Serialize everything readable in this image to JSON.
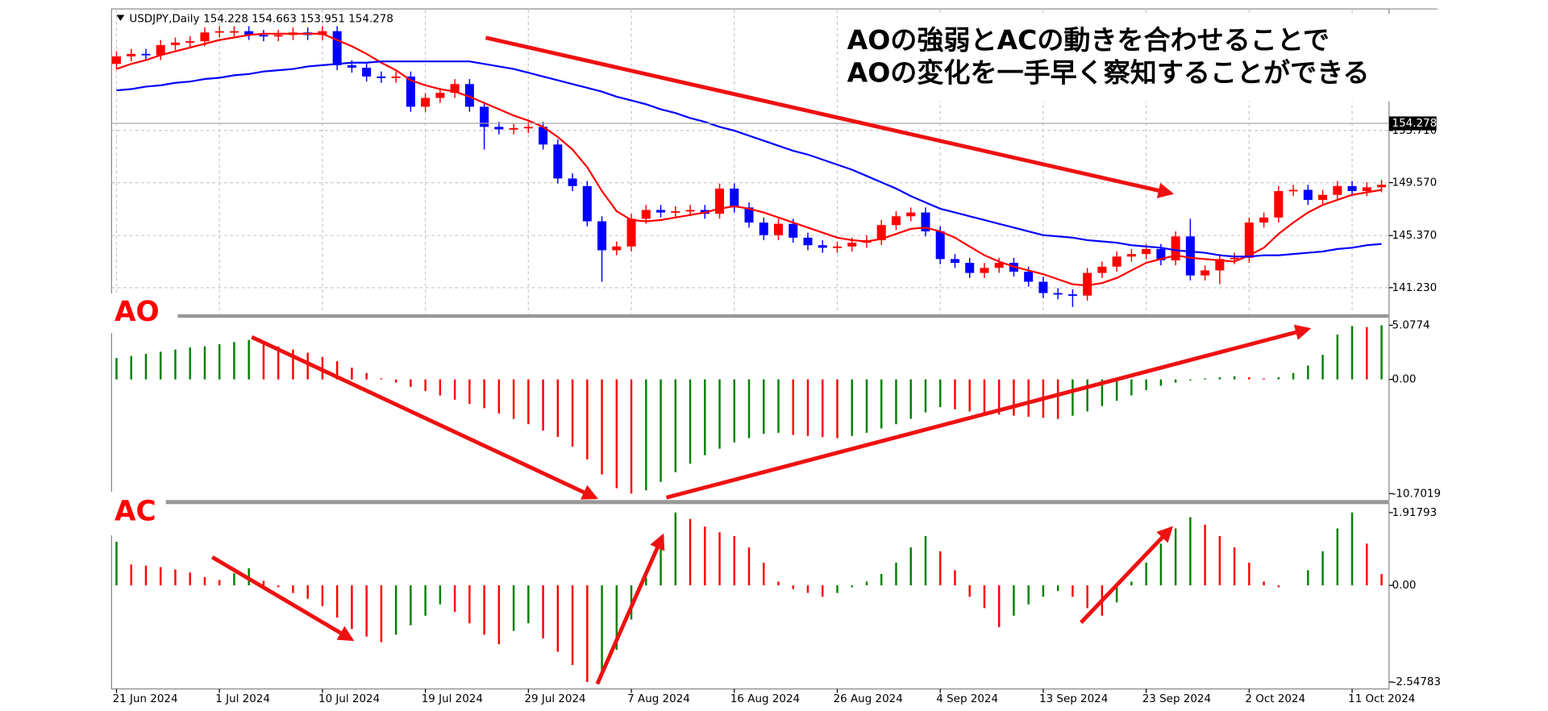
{
  "chart_data": [
    {
      "type": "candlestick",
      "title": "USDJPY,Daily",
      "header": {
        "open": 154.228,
        "high": 154.663,
        "low": 153.951,
        "close": 154.278
      },
      "last_price": 154.278,
      "annotations": [
        "AOの強弱とACの動きを合わせることで",
        "AOの変化を一手早く察知することができる"
      ],
      "categories": [
        "21 Jun 2024",
        null,
        null,
        null,
        null,
        null,
        null,
        "1 Jul 2024",
        null,
        null,
        null,
        null,
        null,
        null,
        "10 Jul 2024",
        null,
        null,
        null,
        null,
        null,
        null,
        "19 Jul 2024",
        null,
        null,
        null,
        null,
        null,
        null,
        "29 Jul 2024",
        null,
        null,
        null,
        null,
        null,
        null,
        "7 Aug 2024",
        null,
        null,
        null,
        null,
        null,
        null,
        "16 Aug 2024",
        null,
        null,
        null,
        null,
        null,
        null,
        "26 Aug 2024",
        null,
        null,
        null,
        null,
        null,
        null,
        "4 Sep 2024",
        null,
        null,
        null,
        null,
        null,
        null,
        "13 Sep 2024",
        null,
        null,
        null,
        null,
        null,
        null,
        "23 Sep 2024",
        null,
        null,
        null,
        null,
        null,
        null,
        "2 Oct 2024",
        null,
        null,
        null,
        null,
        null,
        null,
        "11 Oct 2024",
        null,
        null
      ],
      "open": [
        159.0,
        159.6,
        159.8,
        159.7,
        160.5,
        160.7,
        160.8,
        161.5,
        161.6,
        161.6,
        161.3,
        161.2,
        161.3,
        161.5,
        161.3,
        161.6,
        158.9,
        158.7,
        158.0,
        157.9,
        158.0,
        155.6,
        156.3,
        156.7,
        157.4,
        155.6,
        154.0,
        153.8,
        153.9,
        154.0,
        152.6,
        149.9,
        149.3,
        146.5,
        144.2,
        144.5,
        146.7,
        147.4,
        147.2,
        147.3,
        147.4,
        147.1,
        149.1,
        147.6,
        146.4,
        145.4,
        146.3,
        145.2,
        144.6,
        144.4,
        144.5,
        144.8,
        145.0,
        146.2,
        146.9,
        147.2,
        145.7,
        143.5,
        143.2,
        142.4,
        142.8,
        143.2,
        142.5,
        141.7,
        140.8,
        140.7,
        140.6,
        142.4,
        142.9,
        143.7,
        143.9,
        144.3,
        143.4,
        145.3,
        142.2,
        142.6,
        143.5,
        143.6,
        146.4,
        146.8,
        148.9,
        149.0,
        148.2,
        148.6,
        149.3,
        148.9,
        149.2
      ],
      "high": [
        160.0,
        160.2,
        160.2,
        160.9,
        161.1,
        161.2,
        161.9,
        162.0,
        162.0,
        162.0,
        161.7,
        161.7,
        161.9,
        161.9,
        162.0,
        162.0,
        159.3,
        159.1,
        158.4,
        158.4,
        158.4,
        156.7,
        157.1,
        157.8,
        157.8,
        156.0,
        154.4,
        154.3,
        154.4,
        154.4,
        153.0,
        150.3,
        149.7,
        146.9,
        144.9,
        147.1,
        147.8,
        147.8,
        147.7,
        147.8,
        147.8,
        149.5,
        149.5,
        148.0,
        146.8,
        146.7,
        146.7,
        145.6,
        145.0,
        144.9,
        145.2,
        145.4,
        146.6,
        147.3,
        147.6,
        147.6,
        146.1,
        143.9,
        143.6,
        143.2,
        143.6,
        143.6,
        142.9,
        142.1,
        141.2,
        141.1,
        142.8,
        143.3,
        144.1,
        144.3,
        144.7,
        144.7,
        145.7,
        146.7,
        143.0,
        143.9,
        144.0,
        146.8,
        147.2,
        149.3,
        149.4,
        149.4,
        149.0,
        149.7,
        149.7,
        149.6,
        149.8
      ],
      "low": [
        158.6,
        159.2,
        159.3,
        159.3,
        160.1,
        160.3,
        160.4,
        161.1,
        161.2,
        160.9,
        160.8,
        160.8,
        160.9,
        160.9,
        160.9,
        158.5,
        158.3,
        157.6,
        157.5,
        157.5,
        155.2,
        155.2,
        155.9,
        156.3,
        155.2,
        152.2,
        153.4,
        153.4,
        153.5,
        152.2,
        149.5,
        148.9,
        146.1,
        141.7,
        143.8,
        144.1,
        146.3,
        146.8,
        146.8,
        146.9,
        146.7,
        146.7,
        147.2,
        146.0,
        145.0,
        145.0,
        144.8,
        144.2,
        144.0,
        144.0,
        144.1,
        144.4,
        144.6,
        145.8,
        146.5,
        145.3,
        143.1,
        142.8,
        142.0,
        142.0,
        142.4,
        142.1,
        141.3,
        140.4,
        140.3,
        139.7,
        140.2,
        142.0,
        142.5,
        143.3,
        143.5,
        143.0,
        143.0,
        141.8,
        141.8,
        141.5,
        143.1,
        143.2,
        146.0,
        146.4,
        148.5,
        147.8,
        147.8,
        148.2,
        148.5,
        148.5,
        148.8
      ],
      "close": [
        159.6,
        159.8,
        159.7,
        160.5,
        160.7,
        160.8,
        161.5,
        161.6,
        161.6,
        161.3,
        161.2,
        161.3,
        161.5,
        161.3,
        161.6,
        158.9,
        158.7,
        158.0,
        157.9,
        158.0,
        155.6,
        156.3,
        156.7,
        157.4,
        155.6,
        154.0,
        153.8,
        153.9,
        154.0,
        152.6,
        149.9,
        149.3,
        146.5,
        144.2,
        144.5,
        146.7,
        147.4,
        147.2,
        147.3,
        147.4,
        147.1,
        149.1,
        147.6,
        146.4,
        145.4,
        146.3,
        145.2,
        144.6,
        144.4,
        144.5,
        144.8,
        145.0,
        146.2,
        146.9,
        147.2,
        145.7,
        143.5,
        143.2,
        142.4,
        142.8,
        143.2,
        142.5,
        141.7,
        140.8,
        140.7,
        140.6,
        142.4,
        142.9,
        143.7,
        143.9,
        144.3,
        143.4,
        145.3,
        142.2,
        142.6,
        143.5,
        143.6,
        146.4,
        146.8,
        148.9,
        149.0,
        148.2,
        148.6,
        149.3,
        148.9,
        149.2,
        149.4
      ],
      "up_color": "#ff0000",
      "down_color": "#0000ff",
      "series": [
        {
          "color": "#ff0000",
          "values": [
            158.6,
            159.0,
            159.3,
            159.7,
            160.0,
            160.3,
            160.6,
            160.9,
            161.1,
            161.3,
            161.4,
            161.4,
            161.4,
            161.4,
            161.4,
            160.9,
            160.4,
            159.8,
            159.1,
            158.5,
            157.7,
            157.3,
            157.0,
            156.8,
            156.4,
            155.9,
            155.4,
            154.9,
            154.5,
            154.0,
            153.2,
            152.2,
            150.8,
            148.9,
            147.3,
            146.6,
            146.5,
            146.6,
            146.8,
            147.0,
            147.2,
            147.5,
            147.7,
            147.5,
            147.2,
            146.8,
            146.4,
            146.0,
            145.6,
            145.2,
            145.0,
            144.9,
            145.1,
            145.5,
            145.9,
            146.0,
            145.7,
            145.2,
            144.5,
            143.8,
            143.3,
            142.9,
            142.6,
            142.3,
            141.9,
            141.5,
            141.4,
            141.6,
            142.0,
            142.6,
            143.2,
            143.5,
            143.8,
            143.6,
            143.5,
            143.4,
            143.3,
            143.8,
            144.4,
            145.5,
            146.4,
            147.2,
            147.8,
            148.2,
            148.6,
            148.8,
            149.0
          ]
        },
        {
          "color": "#0000ff",
          "values": [
            156.9,
            157.0,
            157.2,
            157.3,
            157.5,
            157.6,
            157.8,
            157.9,
            158.1,
            158.2,
            158.4,
            158.5,
            158.6,
            158.8,
            158.9,
            159.0,
            159.1,
            159.1,
            159.2,
            159.2,
            159.2,
            159.2,
            159.2,
            159.2,
            159.2,
            159.0,
            158.8,
            158.6,
            158.3,
            158.0,
            157.7,
            157.4,
            157.1,
            156.8,
            156.4,
            156.1,
            155.8,
            155.4,
            155.1,
            154.7,
            154.4,
            154.0,
            153.7,
            153.3,
            152.9,
            152.5,
            152.1,
            151.8,
            151.4,
            151.0,
            150.6,
            150.1,
            149.6,
            149.1,
            148.5,
            148.0,
            147.5,
            147.2,
            146.9,
            146.6,
            146.3,
            146.0,
            145.7,
            145.4,
            145.3,
            145.2,
            145.0,
            144.9,
            144.8,
            144.6,
            144.5,
            144.4,
            144.2,
            144.1,
            144.0,
            143.8,
            143.7,
            143.7,
            143.8,
            143.8,
            143.9,
            144.0,
            144.1,
            144.3,
            144.4,
            144.6,
            144.7
          ]
        }
      ],
      "ylim": [
        139.04,
        163.29
      ],
      "yticks": [
        {
          "value": 141.23,
          "label": "141.230"
        },
        {
          "value": 145.37,
          "label": "145.370"
        },
        {
          "value": 149.57,
          "label": "149.570"
        },
        {
          "value": 153.71,
          "label": "153.710"
        }
      ],
      "grid": true
    },
    {
      "type": "bar",
      "title": "AO",
      "up_color": "#008000",
      "down_color": "#ff0000",
      "values": [
        2.0,
        2.2,
        2.4,
        2.6,
        2.8,
        3.0,
        3.1,
        3.3,
        3.5,
        3.7,
        3.4,
        3.1,
        2.8,
        2.5,
        2.1,
        1.7,
        1.1,
        0.6,
        0.1,
        -0.3,
        -0.7,
        -1.1,
        -1.5,
        -1.9,
        -2.3,
        -2.7,
        -3.2,
        -3.7,
        -4.2,
        -4.8,
        -5.4,
        -6.3,
        -7.5,
        -8.9,
        -10.2,
        -10.7,
        -10.4,
        -9.6,
        -8.7,
        -7.9,
        -7.1,
        -6.5,
        -5.9,
        -5.5,
        -5.1,
        -5.0,
        -5.2,
        -5.3,
        -5.4,
        -5.5,
        -5.3,
        -5.0,
        -4.6,
        -4.2,
        -3.7,
        -3.1,
        -2.6,
        -2.8,
        -3.0,
        -3.2,
        -3.3,
        -3.4,
        -3.5,
        -3.6,
        -3.7,
        -3.4,
        -3.0,
        -2.5,
        -2.0,
        -1.5,
        -1.0,
        -0.6,
        -0.3,
        -0.1,
        0.1,
        0.2,
        0.3,
        0.2,
        0.1,
        0.2,
        0.6,
        1.3,
        2.3,
        4.2,
        5.0,
        4.9,
        5.0774
      ],
      "ylim": [
        -11.36,
        5.83
      ],
      "yticks": [
        -10.7019,
        {
          "value": 0,
          "label": "0.00"
        },
        5.0774
      ]
    },
    {
      "type": "bar",
      "title": "AC",
      "up_color": "#008000",
      "down_color": "#ff0000",
      "values": [
        1.15,
        0.55,
        0.52,
        0.48,
        0.42,
        0.34,
        0.22,
        0.14,
        0.32,
        0.45,
        0.12,
        -0.05,
        -0.2,
        -0.35,
        -0.55,
        -0.85,
        -1.15,
        -1.35,
        -1.5,
        -1.3,
        -1.05,
        -0.8,
        -0.5,
        -0.7,
        -1.0,
        -1.3,
        -1.55,
        -1.2,
        -1.0,
        -1.4,
        -1.75,
        -2.1,
        -2.55,
        -2.3,
        -1.7,
        -0.9,
        0.2,
        1.2,
        1.92,
        1.75,
        1.55,
        1.4,
        1.3,
        1.0,
        0.6,
        0.1,
        -0.1,
        -0.2,
        -0.3,
        -0.2,
        -0.05,
        0.1,
        0.3,
        0.6,
        1.0,
        1.3,
        0.9,
        0.4,
        -0.3,
        -0.6,
        -1.1,
        -0.8,
        -0.5,
        -0.3,
        -0.15,
        -0.3,
        -0.6,
        -0.8,
        -0.45,
        0.1,
        0.6,
        1.1,
        1.5,
        1.8,
        1.6,
        1.3,
        1.0,
        0.6,
        0.1,
        -0.05,
        0.0,
        0.4,
        0.9,
        1.5,
        1.92,
        1.1,
        0.3
      ],
      "ylim": [
        -2.73,
        2.13
      ],
      "yticks": [
        -2.54783,
        {
          "value": 0,
          "label": "0.00"
        },
        1.91793
      ]
    }
  ]
}
